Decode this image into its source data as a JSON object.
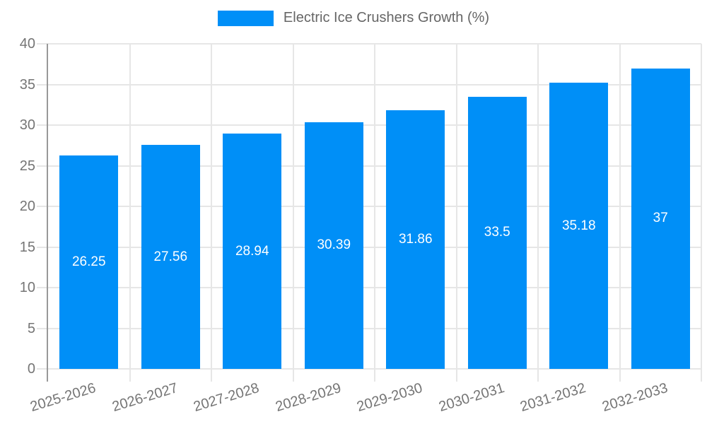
{
  "legend": {
    "label": "Electric Ice Crushers Growth (%)"
  },
  "chart_data": {
    "type": "bar",
    "title": "Electric Ice Crushers Growth (%)",
    "series_name": "Electric Ice Crushers Growth (%)",
    "categories": [
      "2025-2026",
      "2026-2027",
      "2027-2028",
      "2028-2029",
      "2029-2030",
      "2030-2031",
      "2031-2032",
      "2032-2033"
    ],
    "values": [
      26.25,
      27.56,
      28.94,
      30.39,
      31.86,
      33.5,
      35.18,
      37
    ],
    "value_labels": [
      "26.25",
      "27.56",
      "28.94",
      "30.39",
      "31.86",
      "33.5",
      "35.18",
      "37"
    ],
    "xlabel": "",
    "ylabel": "",
    "ylim": [
      0,
      40
    ],
    "yticks": [
      0,
      5,
      10,
      15,
      20,
      25,
      30,
      35,
      40
    ],
    "grid": true,
    "legend_position": "top-center",
    "value_label_position": "inside-center",
    "x_tick_rotation_deg": -17,
    "colors": {
      "bar": "#008FF7",
      "grid": "#E6E6E6",
      "y_axis": "#999999",
      "tick_label": "#757575",
      "value_label": "#FFFFFF",
      "legend_text": "#666666",
      "background": "#FFFFFF"
    }
  }
}
